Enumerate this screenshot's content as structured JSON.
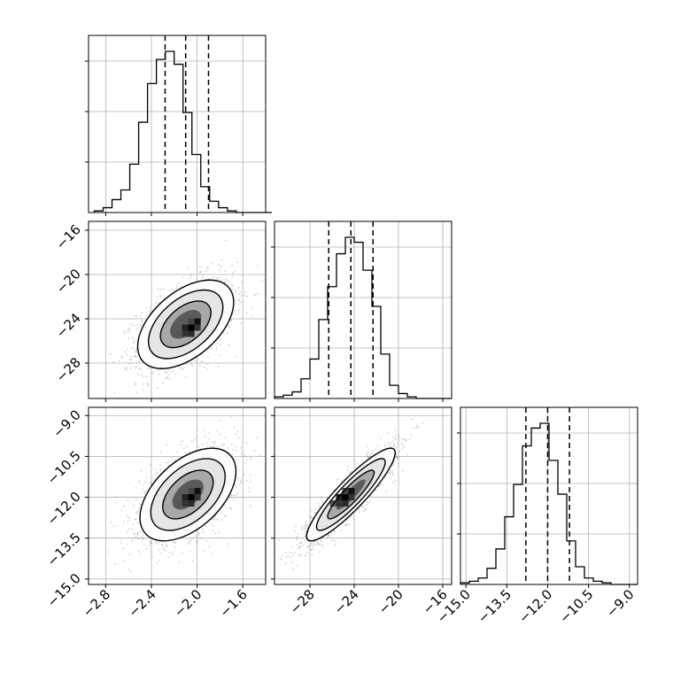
{
  "chart_data": {
    "type": "corner",
    "grid": true,
    "quantile_line_style": "dashed",
    "parameters": [
      {
        "range": [
          -2.95,
          -1.4
        ],
        "ticks": [
          -2.8,
          -2.4,
          -2.0,
          -1.6
        ],
        "tick_labels": [
          "−2.8",
          "−2.4",
          "−2.0",
          "−1.6"
        ],
        "quantiles": [
          -2.28,
          -2.1,
          -1.9
        ],
        "hist_bins": {
          "start": -2.9,
          "step": 0.0777,
          "counts": [
            1,
            3,
            8,
            14,
            30,
            56,
            80,
            95,
            100,
            92,
            62,
            36,
            16,
            7,
            3,
            1,
            0,
            0,
            0,
            0
          ]
        }
      },
      {
        "range": [
          -31.2,
          -15.2
        ],
        "ticks": [
          -28,
          -24,
          -20,
          -16
        ],
        "tick_labels": [
          "−28",
          "−24",
          "−20",
          "−16"
        ],
        "quantiles": [
          -26.3,
          -24.3,
          -22.3
        ],
        "hist_bins": {
          "start": -31.2,
          "step": 0.8,
          "counts": [
            1,
            2,
            4,
            12,
            24,
            48,
            68,
            88,
            98,
            95,
            78,
            56,
            27,
            8,
            3,
            1,
            0,
            0,
            0,
            0
          ]
        }
      },
      {
        "range": [
          -15.2,
          -8.7
        ],
        "ticks": [
          -15.0,
          -13.5,
          -12.0,
          -10.5,
          -9.0
        ],
        "tick_labels": [
          "−15.0",
          "−13.5",
          "−12.0",
          "−10.5",
          "−9.0"
        ],
        "quantiles": [
          -12.8,
          -12.0,
          -11.2
        ],
        "hist_bins": {
          "start": -15.2,
          "step": 0.325,
          "counts": [
            1,
            2,
            4,
            10,
            22,
            42,
            62,
            86,
            97,
            100,
            77,
            56,
            27,
            11,
            4,
            2,
            1,
            0,
            0,
            0
          ]
        }
      }
    ],
    "pairs": [
      {
        "x": 0,
        "y": 1,
        "mean": [
          -2.1,
          -24.5
        ],
        "sd": [
          0.21,
          2.0
        ],
        "rho": 0.5,
        "hot": [
          -2.05,
          -24.8
        ]
      },
      {
        "x": 0,
        "y": 2,
        "mean": [
          -2.08,
          -11.9
        ],
        "sd": [
          0.21,
          0.85
        ],
        "rho": 0.5,
        "hot": [
          -2.05,
          -12.0
        ]
      },
      {
        "x": 1,
        "y": 2,
        "mean": [
          -24.3,
          -11.9
        ],
        "sd": [
          2.0,
          0.85
        ],
        "rho": 0.9,
        "hot": [
          -24.8,
          -12.0
        ]
      }
    ]
  }
}
